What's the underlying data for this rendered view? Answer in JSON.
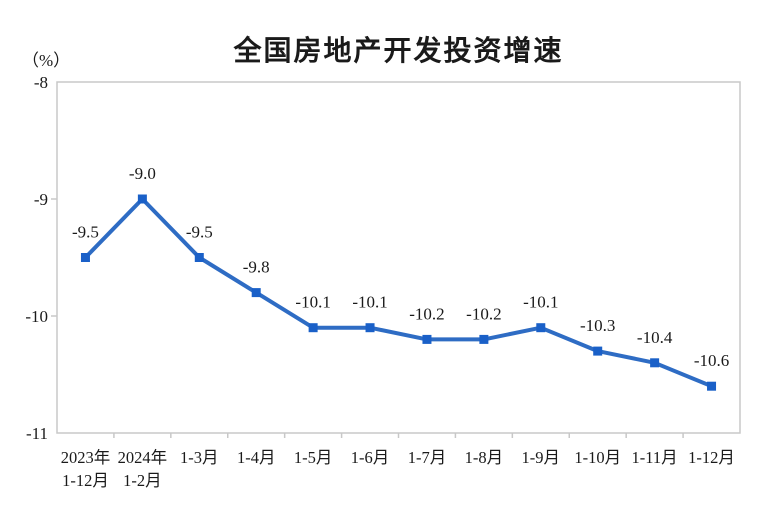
{
  "page": {
    "title": "全国房地产开发投资增速",
    "unit_label": "（%）"
  },
  "colors": {
    "line": "#2e6cc4",
    "marker": "#1a60c8",
    "axis": "#c8c8c8",
    "text": "#1a1a1a"
  },
  "chart_data": {
    "type": "line",
    "title": "全国房地产开发投资增速",
    "ylabel": "（%）",
    "xlabel": "",
    "grid": false,
    "legend_position": "none",
    "marker_shape": "square",
    "ylim": [
      -11,
      -8
    ],
    "y_ticks": [
      -8,
      -9,
      -10,
      -11
    ],
    "y_tick_labels": [
      "-8",
      "-9",
      "-10",
      "-11"
    ],
    "categories": [
      [
        "2023年",
        "1-12月"
      ],
      [
        "2024年",
        "1-2月"
      ],
      [
        "1-3月"
      ],
      [
        "1-4月"
      ],
      [
        "1-5月"
      ],
      [
        "1-6月"
      ],
      [
        "1-7月"
      ],
      [
        "1-8月"
      ],
      [
        "1-9月"
      ],
      [
        "1-10月"
      ],
      [
        "1-11月"
      ],
      [
        "1-12月"
      ]
    ],
    "values": [
      -9.5,
      -9.0,
      -9.5,
      -9.8,
      -10.1,
      -10.1,
      -10.2,
      -10.2,
      -10.1,
      -10.3,
      -10.4,
      -10.6
    ],
    "data_labels": [
      "-9.5",
      "-9.0",
      "-9.5",
      "-9.8",
      "-10.1",
      "-10.1",
      "-10.2",
      "-10.2",
      "-10.1",
      "-10.3",
      "-10.4",
      "-10.6"
    ]
  }
}
